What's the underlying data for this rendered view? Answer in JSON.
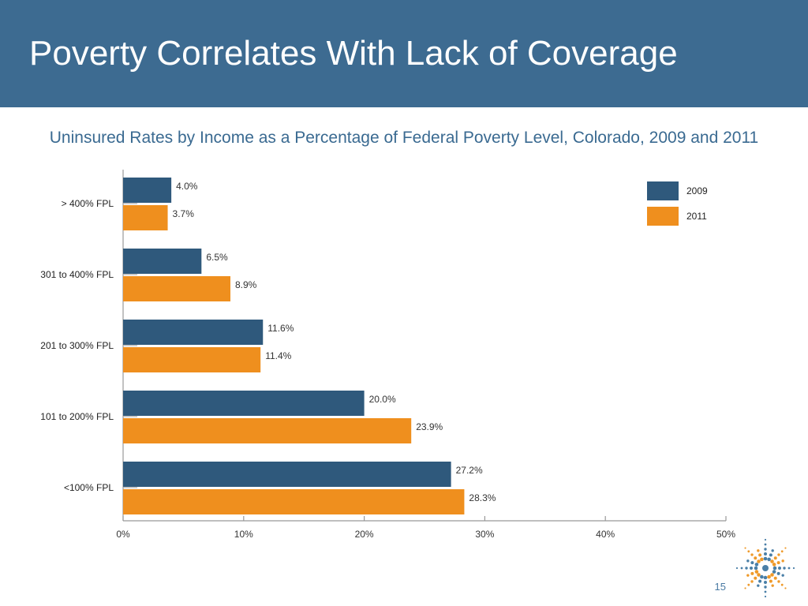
{
  "slide": {
    "title": "Poverty Correlates With Lack of Coverage",
    "page_number": "15"
  },
  "colors": {
    "header_bg": "#3d6b91",
    "series_2009": "#2f597c",
    "series_2011": "#ef8f1e",
    "subtitle": "#3a6a91"
  },
  "logo": {
    "icon": "starburst-logo-icon"
  },
  "chart_data": {
    "type": "bar",
    "orientation": "horizontal",
    "title": "Uninsured Rates by Income as a Percentage of Federal Poverty Level, Colorado, 2009 and 2011",
    "xlabel": "",
    "ylabel": "",
    "xlim": [
      0,
      50
    ],
    "x_ticks": [
      "0%",
      "10%",
      "20%",
      "30%",
      "40%",
      "50%"
    ],
    "x_tick_values": [
      0,
      10,
      20,
      30,
      40,
      50
    ],
    "categories": [
      "> 400% FPL",
      "301 to 400% FPL",
      "201 to 300% FPL",
      "101 to 200% FPL",
      "<100% FPL"
    ],
    "series": [
      {
        "name": "2009",
        "color": "#2f597c",
        "values": [
          4.0,
          6.5,
          11.6,
          20.0,
          27.2
        ],
        "labels": [
          "4.0%",
          "6.5%",
          "11.6%",
          "20.0%",
          "27.2%"
        ]
      },
      {
        "name": "2011",
        "color": "#ef8f1e",
        "values": [
          3.7,
          8.9,
          11.4,
          23.9,
          28.3
        ],
        "labels": [
          "3.7%",
          "8.9%",
          "11.4%",
          "23.9%",
          "28.3%"
        ]
      }
    ],
    "legend": "top-right",
    "grid": false
  }
}
